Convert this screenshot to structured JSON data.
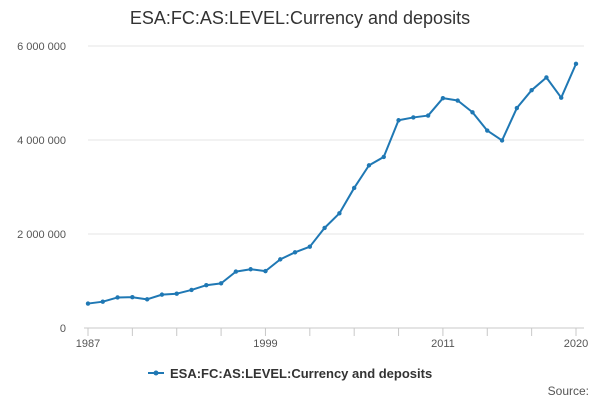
{
  "chart_data": {
    "type": "line",
    "title": "ESA:FC:AS:LEVEL:Currency and deposits",
    "xlabel": "",
    "ylabel": "",
    "x": [
      1987,
      1988,
      1989,
      1990,
      1991,
      1992,
      1993,
      1994,
      1995,
      1996,
      1997,
      1998,
      1999,
      2000,
      2001,
      2002,
      2003,
      2004,
      2005,
      2006,
      2007,
      2008,
      2009,
      2010,
      2011,
      2012,
      2013,
      2014,
      2015,
      2016,
      2017,
      2018,
      2019,
      2020
    ],
    "series": [
      {
        "name": "ESA:FC:AS:LEVEL:Currency and deposits",
        "color": "#1f78b4",
        "values": [
          520000,
          560000,
          650000,
          655000,
          610000,
          710000,
          730000,
          810000,
          910000,
          950000,
          1200000,
          1250000,
          1210000,
          1460000,
          1610000,
          1730000,
          2130000,
          2440000,
          2980000,
          3460000,
          3640000,
          4420000,
          4480000,
          4520000,
          4890000,
          4840000,
          4590000,
          4200000,
          3990000,
          4680000,
          5060000,
          5330000,
          4900000,
          5620000
        ]
      }
    ],
    "xlim": [
      1987,
      2020
    ],
    "ylim": [
      0,
      6000000
    ],
    "x_ticks": [
      1987,
      1999,
      2011,
      2020
    ],
    "x_tick_labels": [
      "1987",
      "1999",
      "2011",
      "2020"
    ],
    "x_minor_ticks": [
      1987,
      1990,
      1993,
      1996,
      1999,
      2002,
      2005,
      2008,
      2011,
      2014,
      2017,
      2020
    ],
    "y_ticks": [
      0,
      2000000,
      4000000,
      6000000
    ],
    "y_tick_labels": [
      "0",
      "2 000 000",
      "4 000 000",
      "6 000 000"
    ],
    "grid": true,
    "legend_position": "bottom-center",
    "source_label": "Source:"
  }
}
